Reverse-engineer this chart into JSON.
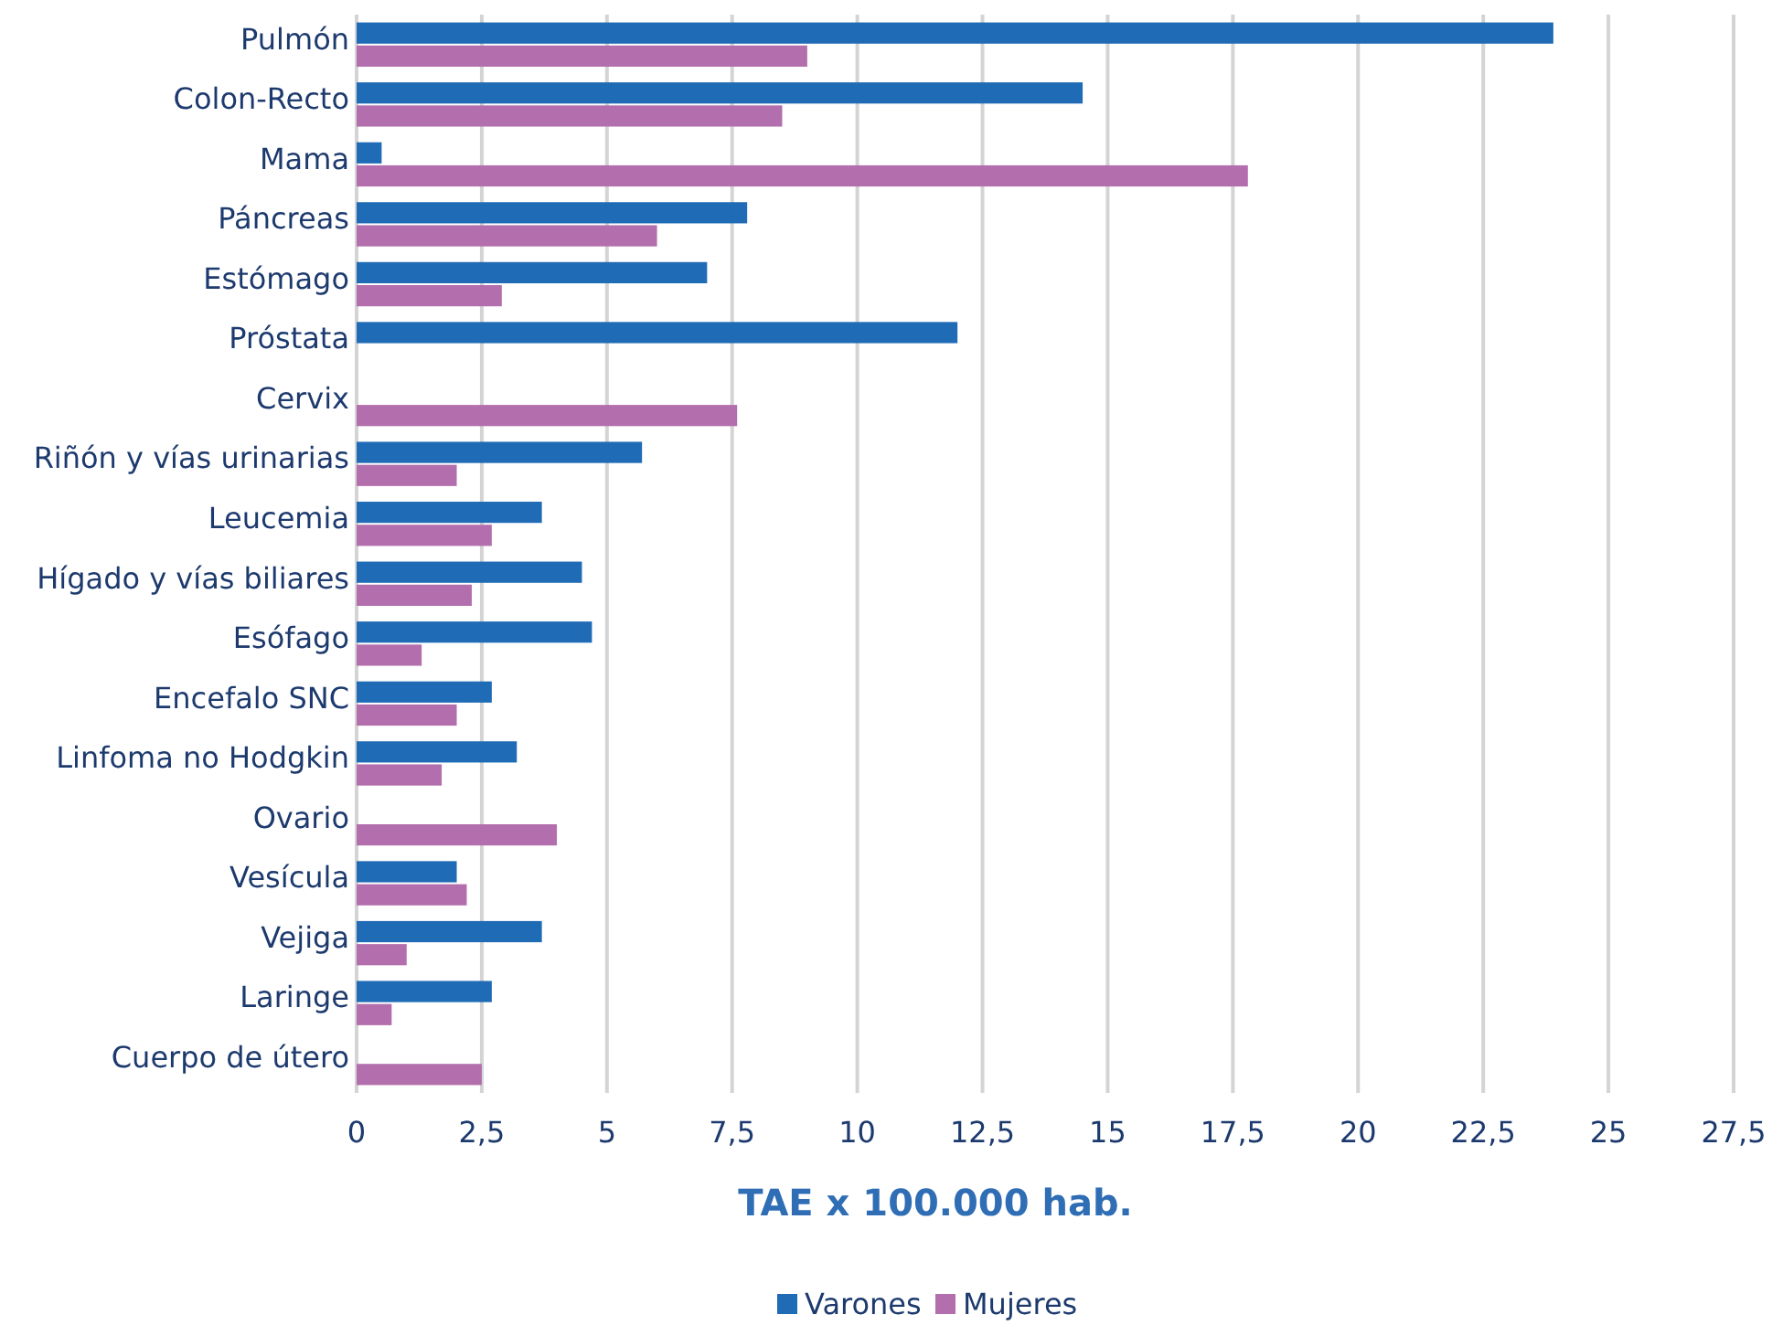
{
  "chart_data": {
    "type": "bar",
    "orientation": "horizontal",
    "xlabel": "TAE x 100.000 hab.",
    "categories": [
      "Pulmón",
      "Colon-Recto",
      "Mama",
      "Páncreas",
      "Estómago",
      "Próstata",
      "Cervix",
      "Riñón y vías urinarias",
      "Leucemia",
      "Hígado y vías biliares",
      "Esófago",
      "Encefalo SNC",
      "Linfoma no Hodgkin",
      "Ovario",
      "Vesícula",
      "Vejiga",
      "Laringe",
      "Cuerpo de útero"
    ],
    "series": [
      {
        "name": "Varones",
        "color": "#1f6bb5",
        "values": [
          23.9,
          14.5,
          0.5,
          7.8,
          7.0,
          12.0,
          null,
          5.7,
          3.7,
          4.5,
          4.7,
          2.7,
          3.2,
          null,
          2.0,
          3.7,
          2.7,
          null
        ]
      },
      {
        "name": "Mujeres",
        "color": "#b36fad",
        "values": [
          9.0,
          8.5,
          17.8,
          6.0,
          2.9,
          null,
          7.6,
          2.0,
          2.7,
          2.3,
          1.3,
          2.0,
          1.7,
          4.0,
          2.2,
          1.0,
          0.7,
          2.5
        ]
      }
    ],
    "xlim": [
      0,
      27.5
    ],
    "xticks": [
      0,
      {
        "value": 2.5,
        "label": "2,5"
      },
      5,
      {
        "value": 7.5,
        "label": "7,5"
      },
      10,
      {
        "value": 12.5,
        "label": "12,5"
      },
      15,
      {
        "value": 17.5,
        "label": "17,5"
      },
      20,
      {
        "value": 22.5,
        "label": "22,5"
      },
      25,
      {
        "value": 27.5,
        "label": "27,5"
      }
    ],
    "grid": "x",
    "legend": "bottom"
  }
}
